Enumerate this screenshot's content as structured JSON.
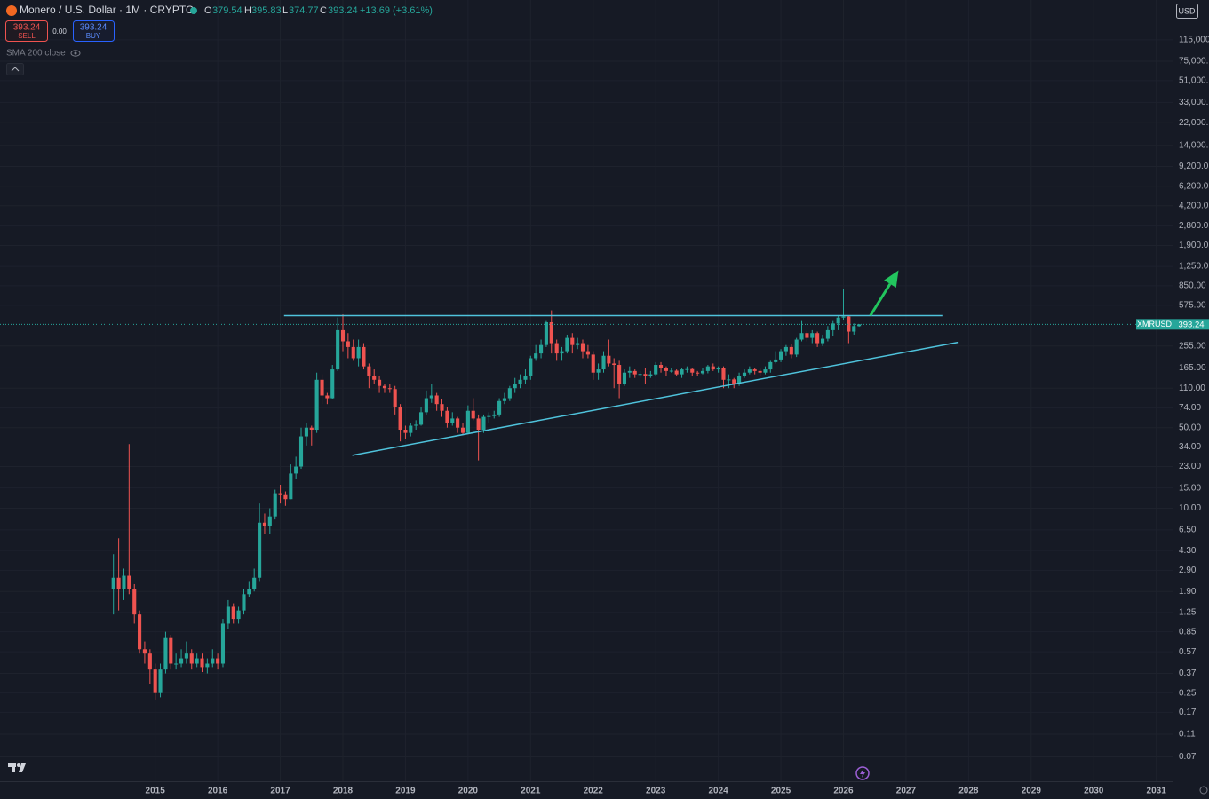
{
  "header": {
    "title": "Monero / U.S. Dollar · 1M · CRYPTO",
    "open_label": "O",
    "high_label": "H",
    "low_label": "L",
    "close_label": "C",
    "change": "+13.69 (+3.61%)",
    "sell_price": "393.24",
    "sell_label": "SELL",
    "spread": "0.00",
    "buy_price": "393.24",
    "buy_label": "BUY",
    "indicator": "SMA 200 close",
    "currency": "USD",
    "symbol": "XMRUSD"
  },
  "chart_data": {
    "type": "candlestick",
    "log_y": true,
    "grid": true,
    "up_color": "#26a69a",
    "down_color": "#ef5350",
    "x": [
      2014.333,
      2014.417,
      2014.5,
      2014.583,
      2014.667,
      2014.75,
      2014.833,
      2014.917,
      2015,
      2015.083,
      2015.167,
      2015.25,
      2015.333,
      2015.417,
      2015.5,
      2015.583,
      2015.667,
      2015.75,
      2015.833,
      2015.917,
      2016,
      2016.083,
      2016.167,
      2016.25,
      2016.333,
      2016.417,
      2016.5,
      2016.583,
      2016.667,
      2016.75,
      2016.833,
      2016.917,
      2017,
      2017.083,
      2017.167,
      2017.25,
      2017.333,
      2017.417,
      2017.5,
      2017.583,
      2017.667,
      2017.75,
      2017.833,
      2017.917,
      2018,
      2018.083,
      2018.167,
      2018.25,
      2018.333,
      2018.417,
      2018.5,
      2018.583,
      2018.667,
      2018.75,
      2018.833,
      2018.917,
      2019,
      2019.083,
      2019.167,
      2019.25,
      2019.333,
      2019.417,
      2019.5,
      2019.583,
      2019.667,
      2019.75,
      2019.833,
      2019.917,
      2020,
      2020.083,
      2020.167,
      2020.25,
      2020.333,
      2020.417,
      2020.5,
      2020.583,
      2020.667,
      2020.75,
      2020.833,
      2020.917,
      2021,
      2021.083,
      2021.167,
      2021.25,
      2021.333,
      2021.417,
      2021.5,
      2021.583,
      2021.667,
      2021.75,
      2021.833,
      2021.917,
      2022,
      2022.083,
      2022.167,
      2022.25,
      2022.333,
      2022.417,
      2022.5,
      2022.583,
      2022.667,
      2022.75,
      2022.833,
      2022.917,
      2023,
      2023.083,
      2023.167,
      2023.25,
      2023.333,
      2023.417,
      2023.5,
      2023.583,
      2023.667,
      2023.75,
      2023.833,
      2023.917,
      2024,
      2024.083,
      2024.167,
      2024.25,
      2024.333,
      2024.417,
      2024.5,
      2024.583,
      2024.667,
      2024.75,
      2024.833,
      2024.917,
      2025,
      2025.083,
      2025.167,
      2025.25,
      2025.333,
      2025.417,
      2025.5,
      2025.583,
      2025.667,
      2025.75,
      2025.833,
      2025.917,
      2026,
      2026.083,
      2026.167,
      2026.25
    ],
    "open": [
      2.0,
      2.5,
      2.0,
      2.6,
      2.0,
      1.2,
      0.6,
      0.55,
      0.4,
      0.25,
      0.4,
      0.75,
      0.45,
      0.45,
      0.5,
      0.55,
      0.45,
      0.5,
      0.42,
      0.45,
      0.5,
      0.45,
      1.0,
      1.4,
      1.1,
      1.3,
      1.8,
      2.0,
      2.5,
      7.5,
      7.0,
      8.5,
      13.5,
      13,
      12,
      20,
      23,
      42,
      50,
      48,
      130,
      95,
      90,
      160,
      350,
      280,
      250,
      200,
      250,
      170,
      140,
      130,
      115,
      110,
      108,
      75,
      48,
      45,
      52,
      53,
      68,
      90,
      95,
      80,
      70,
      55,
      60,
      50,
      45,
      70,
      60,
      48,
      62,
      63,
      65,
      85,
      90,
      110,
      120,
      130,
      140,
      200,
      220,
      260,
      410,
      270,
      220,
      230,
      300,
      260,
      270,
      230,
      215,
      150,
      160,
      210,
      180,
      175,
      120,
      150,
      155,
      145,
      146,
      140,
      145,
      175,
      165,
      155,
      156,
      145,
      160,
      161,
      150,
      148,
      155,
      170,
      160,
      165,
      130,
      131,
      120,
      140,
      150,
      160,
      155,
      150,
      160,
      185,
      195,
      230,
      250,
      215,
      290,
      330,
      300,
      330,
      270,
      295,
      350,
      400,
      450,
      460,
      340,
      379.54
    ],
    "high": [
      4.0,
      5.5,
      3.0,
      36,
      2.2,
      1.3,
      0.7,
      0.6,
      0.45,
      0.45,
      0.85,
      0.8,
      0.55,
      0.6,
      0.7,
      0.6,
      0.55,
      0.55,
      0.5,
      0.6,
      0.55,
      1.1,
      1.6,
      1.5,
      1.4,
      2.0,
      2.3,
      3.0,
      11,
      9,
      10,
      14.5,
      16,
      14,
      24,
      28,
      50,
      55,
      52,
      150,
      145,
      100,
      175,
      450,
      480,
      330,
      290,
      290,
      270,
      180,
      160,
      140,
      120,
      120,
      115,
      80,
      52,
      55,
      58,
      75,
      105,
      120,
      100,
      88,
      75,
      68,
      62,
      55,
      78,
      90,
      65,
      65,
      68,
      70,
      90,
      100,
      115,
      135,
      145,
      160,
      210,
      260,
      290,
      420,
      520,
      290,
      250,
      320,
      330,
      300,
      290,
      260,
      230,
      180,
      230,
      290,
      200,
      190,
      160,
      170,
      160,
      155,
      165,
      155,
      185,
      185,
      170,
      165,
      160,
      165,
      170,
      165,
      155,
      165,
      175,
      180,
      170,
      170,
      145,
      135,
      150,
      160,
      170,
      165,
      162,
      170,
      190,
      230,
      240,
      260,
      265,
      300,
      420,
      345,
      350,
      340,
      320,
      380,
      420,
      470,
      800,
      470,
      400,
      395.83
    ],
    "low": [
      1.2,
      1.3,
      1.6,
      1.8,
      1.0,
      0.55,
      0.45,
      0.3,
      0.22,
      0.23,
      0.37,
      0.4,
      0.4,
      0.42,
      0.45,
      0.4,
      0.42,
      0.38,
      0.37,
      0.42,
      0.4,
      0.42,
      0.9,
      1.0,
      1.0,
      1.2,
      1.7,
      1.9,
      2.3,
      6,
      6,
      8,
      11,
      10.5,
      12,
      18,
      22,
      35,
      35,
      45,
      80,
      80,
      88,
      155,
      230,
      200,
      190,
      170,
      160,
      110,
      120,
      100,
      100,
      100,
      65,
      38,
      40,
      42,
      48,
      52,
      65,
      82,
      70,
      62,
      50,
      52,
      45,
      43,
      44,
      58,
      26,
      45,
      55,
      60,
      62,
      80,
      85,
      100,
      110,
      120,
      130,
      190,
      200,
      250,
      220,
      190,
      190,
      220,
      220,
      240,
      200,
      200,
      130,
      130,
      150,
      170,
      110,
      90,
      115,
      135,
      135,
      135,
      120,
      135,
      140,
      150,
      140,
      150,
      140,
      135,
      150,
      140,
      140,
      145,
      148,
      155,
      150,
      110,
      110,
      110,
      115,
      135,
      145,
      145,
      140,
      145,
      150,
      180,
      185,
      210,
      200,
      205,
      280,
      280,
      270,
      250,
      255,
      280,
      310,
      350,
      430,
      270,
      320,
      374.77
    ],
    "close": [
      2.5,
      2.0,
      2.6,
      2.0,
      1.2,
      0.6,
      0.55,
      0.4,
      0.25,
      0.4,
      0.75,
      0.45,
      0.45,
      0.5,
      0.55,
      0.45,
      0.5,
      0.42,
      0.45,
      0.5,
      0.45,
      1.0,
      1.4,
      1.1,
      1.3,
      1.8,
      2.0,
      2.5,
      7.5,
      7.0,
      8.5,
      13.5,
      13,
      12,
      20,
      23,
      42,
      50,
      48,
      130,
      95,
      90,
      160,
      350,
      280,
      250,
      200,
      250,
      170,
      140,
      130,
      115,
      110,
      108,
      75,
      48,
      45,
      52,
      53,
      68,
      90,
      95,
      80,
      70,
      55,
      60,
      50,
      45,
      70,
      60,
      48,
      62,
      63,
      65,
      85,
      90,
      110,
      120,
      130,
      140,
      200,
      220,
      260,
      410,
      270,
      220,
      230,
      300,
      260,
      270,
      230,
      215,
      150,
      160,
      210,
      180,
      175,
      120,
      150,
      155,
      145,
      146,
      140,
      145,
      175,
      165,
      155,
      156,
      145,
      160,
      161,
      150,
      148,
      155,
      170,
      160,
      165,
      130,
      131,
      120,
      140,
      150,
      160,
      155,
      150,
      160,
      185,
      195,
      230,
      250,
      215,
      290,
      330,
      300,
      330,
      270,
      295,
      350,
      400,
      450,
      460,
      340,
      379.54,
      393.24
    ],
    "xlim": [
      2012.52,
      2031.26
    ],
    "xticks": [
      2015,
      2016,
      2017,
      2018,
      2019,
      2020,
      2021,
      2022,
      2023,
      2024,
      2025,
      2026,
      2027,
      2028,
      2029,
      2030,
      2031
    ],
    "ylim": [
      0.043,
      255000
    ],
    "yticks": [
      {
        "value": 115000,
        "label": "115,000."
      },
      {
        "value": 75000,
        "label": "75,000."
      },
      {
        "value": 51000,
        "label": "51,000."
      },
      {
        "value": 33000,
        "label": "33,000."
      },
      {
        "value": 22000,
        "label": "22,000."
      },
      {
        "value": 14000,
        "label": "14,000."
      },
      {
        "value": 9200,
        "label": "9,200.0"
      },
      {
        "value": 6200,
        "label": "6,200.0"
      },
      {
        "value": 4200,
        "label": "4,200.0"
      },
      {
        "value": 2800,
        "label": "2,800.0"
      },
      {
        "value": 1900,
        "label": "1,900.0"
      },
      {
        "value": 1250,
        "label": "1,250.0"
      },
      {
        "value": 850,
        "label": "850.00"
      },
      {
        "value": 575,
        "label": "575.00"
      },
      {
        "value": 255,
        "label": "255.00"
      },
      {
        "value": 165,
        "label": "165.00"
      },
      {
        "value": 110,
        "label": "110.00"
      },
      {
        "value": 74,
        "label": "74.00"
      },
      {
        "value": 50,
        "label": "50.00"
      },
      {
        "value": 34,
        "label": "34.00"
      },
      {
        "value": 23,
        "label": "23.00"
      },
      {
        "value": 15,
        "label": "15.00"
      },
      {
        "value": 10,
        "label": "10.00"
      },
      {
        "value": 6.5,
        "label": "6.50"
      },
      {
        "value": 4.3,
        "label": "4.30"
      },
      {
        "value": 2.9,
        "label": "2.90"
      },
      {
        "value": 1.9,
        "label": "1.90"
      },
      {
        "value": 1.25,
        "label": "1.25"
      },
      {
        "value": 0.85,
        "label": "0.85"
      },
      {
        "value": 0.57,
        "label": "0.57"
      },
      {
        "value": 0.37,
        "label": "0.37"
      },
      {
        "value": 0.25,
        "label": "0.25"
      },
      {
        "value": 0.17,
        "label": "0.17"
      },
      {
        "value": 0.11,
        "label": "0.11"
      },
      {
        "value": 0.07,
        "label": "0.07"
      }
    ],
    "lines": [
      {
        "x": [
          2017.06,
          2027.58
        ],
        "y": [
          468,
          468
        ],
        "color": "#4fc3dc"
      },
      {
        "x": [
          2018.15,
          2027.84
        ],
        "y": [
          28.8,
          275
        ],
        "color": "#4fc3dc"
      }
    ],
    "arrow": {
      "x": [
        2026.43,
        2026.88
      ],
      "y": [
        468,
        1155
      ],
      "color": "#22c55e"
    }
  }
}
